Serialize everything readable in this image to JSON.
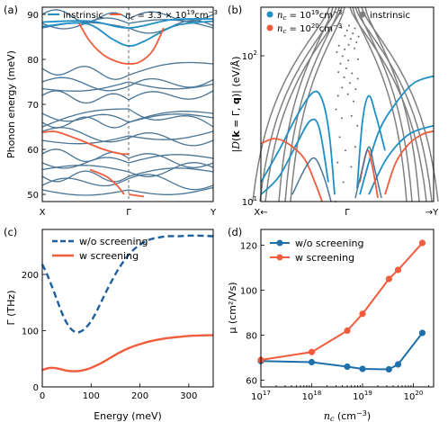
{
  "colors": {
    "blue": "#1f8fc4",
    "orange": "#f05c3c",
    "steel": "#4a7596",
    "gray": "#808080"
  },
  "panels": {
    "a": {
      "label": "(a)",
      "ylabel": "Phonon energy (meV)",
      "xticks": [
        "X",
        "Γ",
        "Y"
      ],
      "yticks": [
        "50",
        "60",
        "70",
        "80",
        "90"
      ],
      "legend": {
        "intrinsic": "instrinsic",
        "doped": "n_c = 3.3 × 10^19 cm^-3"
      }
    },
    "b": {
      "label": "(b)",
      "ylabel": "|D(k = Γ, q)| (eV/Å)",
      "xticks": [
        "X←",
        "Γ",
        "→Y"
      ],
      "yticks": [
        "10^1",
        "10^2"
      ],
      "legend": {
        "nc19": "n_c = 10^19 cm^-3",
        "nc20": "n_c = 10^20 cm^-3",
        "intrinsic": "instrinsic"
      }
    },
    "c": {
      "label": "(c)",
      "xlabel": "Energy (meV)",
      "ylabel": "Γ (THz)",
      "xticks": [
        "0",
        "100",
        "200",
        "300"
      ],
      "yticks": [
        "0",
        "100",
        "200"
      ],
      "legend": {
        "wo": "w/o screening",
        "w": "w screening"
      }
    },
    "d": {
      "label": "(d)",
      "xlabel": "n_c (cm^-3)",
      "ylabel": "μ (cm²/Vs)",
      "xticks": [
        "10^17",
        "10^18",
        "10^19",
        "10^20"
      ],
      "yticks": [
        "60",
        "80",
        "100",
        "120"
      ],
      "legend": {
        "wo": "w/o screening",
        "w": "w screening"
      }
    }
  },
  "chart_data": [
    {
      "panel": "c",
      "type": "line",
      "xlabel": "Energy (meV)",
      "ylabel": "Γ (THz)",
      "xlim": [
        0,
        350
      ],
      "ylim": [
        0,
        280
      ],
      "series": [
        {
          "name": "w/o screening",
          "style": "dashed",
          "color": "#1f5f9e",
          "x": [
            0,
            10,
            20,
            30,
            40,
            50,
            60,
            70,
            80,
            90,
            100,
            110,
            120,
            140,
            160,
            180,
            200,
            220,
            240,
            260,
            280,
            300,
            320,
            350
          ],
          "y": [
            218,
            200,
            178,
            155,
            132,
            114,
            102,
            97,
            99,
            106,
            117,
            132,
            150,
            185,
            215,
            238,
            253,
            262,
            266,
            268,
            268,
            269,
            269,
            268
          ]
        },
        {
          "name": "w screening",
          "style": "solid",
          "color": "#f05c3c",
          "x": [
            0,
            10,
            20,
            30,
            40,
            50,
            60,
            70,
            80,
            90,
            100,
            120,
            140,
            160,
            180,
            200,
            220,
            250,
            280,
            310,
            350
          ],
          "y": [
            30,
            33,
            34,
            33,
            31,
            29,
            28,
            28,
            29,
            31,
            34,
            42,
            52,
            62,
            70,
            76,
            81,
            86,
            89,
            91,
            92
          ]
        }
      ]
    },
    {
      "panel": "d",
      "type": "line",
      "xscale": "log",
      "xlabel": "n_c (cm^-3)",
      "ylabel": "μ (cm²/Vs)",
      "xlim": [
        1e+17,
        2.5e+20
      ],
      "ylim": [
        57,
        127
      ],
      "series": [
        {
          "name": "w/o screening",
          "color": "#1f6fa8",
          "x": [
            1e+17,
            1e+18,
            5e+18,
            1e+19,
            3.3e+19,
            5e+19,
            1.5e+20
          ],
          "y": [
            68.5,
            68,
            66,
            65,
            64.8,
            67,
            81
          ]
        },
        {
          "name": "w screening",
          "color": "#f05c3c",
          "x": [
            1e+17,
            1e+18,
            5e+18,
            1e+19,
            3.3e+19,
            5e+19,
            1.5e+20
          ],
          "y": [
            69,
            72.5,
            82,
            89.5,
            105,
            109,
            121
          ]
        }
      ]
    }
  ]
}
